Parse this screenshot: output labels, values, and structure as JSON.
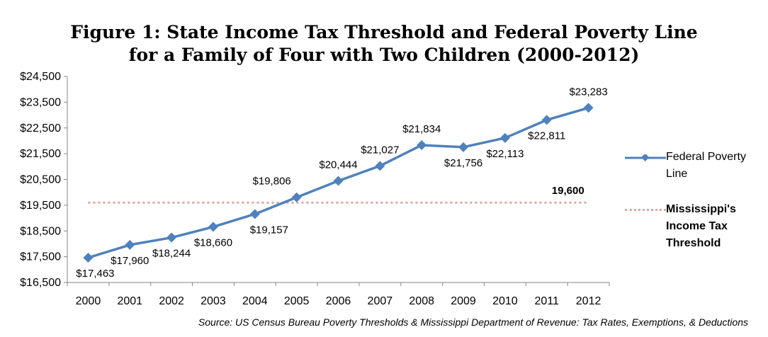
{
  "title": {
    "line1": "Figure 1: State Income Tax Threshold and Federal Poverty Line",
    "line2": "for a Family of Four with Two Children (2000-2012)"
  },
  "source": "Source: US Census Bureau Poverty Thresholds & Mississippi Department of Revenue: Tax Rates, Exemptions, & Deductions",
  "colors": {
    "poverty_line": "#4f81bd",
    "threshold_line": "#d9a7a7"
  },
  "chart_data": {
    "type": "line",
    "x": [
      "2000",
      "2001",
      "2002",
      "2003",
      "2004",
      "2005",
      "2006",
      "2007",
      "2008",
      "2009",
      "2010",
      "2011",
      "2012"
    ],
    "series": [
      {
        "name": "Federal Poverty Line",
        "values": [
          17463,
          17960,
          18244,
          18660,
          19157,
          19806,
          20444,
          21027,
          21834,
          21756,
          22113,
          22811,
          23283
        ],
        "labels": [
          "$17,463",
          "$17,960",
          "$18,244",
          "$18,660",
          "$19,157",
          "$19,806",
          "$20,444",
          "$21,027",
          "$21,834",
          "$21,756",
          "$22,113",
          "$22,811",
          "$23,283"
        ],
        "marker": "diamond",
        "line_style": "solid"
      },
      {
        "name": "Mississippi's Income Tax Threshold",
        "values": [
          19600,
          19600,
          19600,
          19600,
          19600,
          19600,
          19600,
          19600,
          19600,
          19600,
          19600,
          19600,
          19600
        ],
        "label": "19,600",
        "line_style": "dotted"
      }
    ],
    "y_ticks": [
      "$16,500",
      "$17,500",
      "$18,500",
      "$19,500",
      "$20,500",
      "$21,500",
      "$22,500",
      "$23,500",
      "$24,500"
    ],
    "ylim": [
      16500,
      24500
    ],
    "title": "Figure 1: State Income Tax Threshold and Federal Poverty Line for a Family of Four with Two Children (2000-2012)",
    "xlabel": "",
    "ylabel": "",
    "grid": false,
    "legend_position": "right"
  }
}
